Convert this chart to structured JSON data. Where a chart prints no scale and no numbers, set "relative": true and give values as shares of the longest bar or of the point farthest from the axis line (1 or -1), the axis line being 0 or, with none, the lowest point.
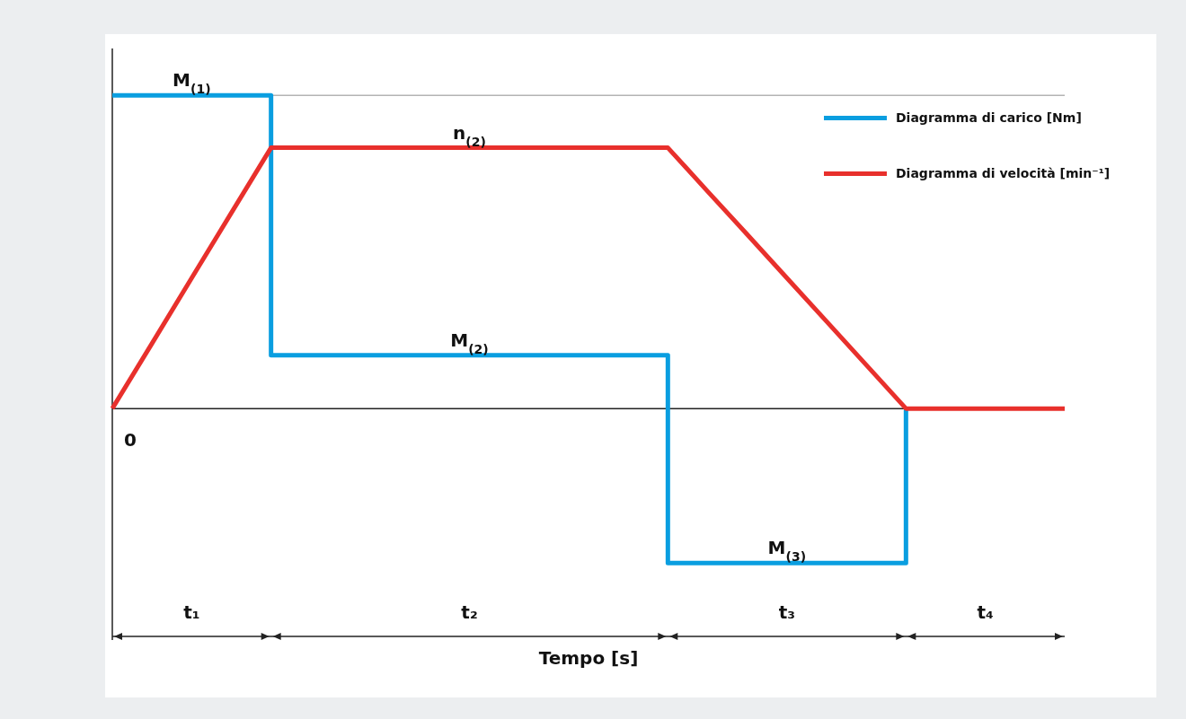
{
  "chart_data": {
    "type": "line",
    "relative": true,
    "xlabel": "Tempo [s]",
    "tick_labels": "x",
    "grid": false,
    "legend": "top right",
    "marker": "none",
    "line_style": "solid",
    "categories": [
      null,
      null,
      "t₁",
      null,
      null,
      null,
      null,
      null,
      null,
      "t₂",
      null,
      null,
      null,
      null,
      null,
      null,
      null,
      "t₃",
      null,
      null,
      null,
      null,
      "t₄",
      null,
      null
    ],
    "series": [
      {
        "name": "Diagramma di carico [Nm]",
        "type": "step",
        "color": "#0a9ee0",
        "values": [
          1,
          1,
          1,
          1,
          0.17,
          0.17,
          0.17,
          0.17,
          0.17,
          0.17,
          0.17,
          0.17,
          0.17,
          0.17,
          -0.493,
          -0.493,
          -0.493,
          -0.493,
          -0.493,
          -0.493,
          0,
          null,
          null,
          null,
          null
        ]
      },
      {
        "name": "Diagramma di velocità [min⁻¹]",
        "color": "#e8302c",
        "values": [
          0,
          0.208,
          0.417,
          0.625,
          0.833,
          0.833,
          0.833,
          0.833,
          0.833,
          0.833,
          0.833,
          0.833,
          0.833,
          0.833,
          0.833,
          0.694,
          0.556,
          0.417,
          0.278,
          0.139,
          0,
          0,
          0,
          0,
          0
        ]
      }
    ],
    "ref_lines": [
      {
        "axis": "y",
        "value": 1,
        "color": "#b4b4b4",
        "line_style": "solid"
      }
    ],
    "annotations": [
      {
        "text": "M$_{(1)}$",
        "x": "t₁",
        "y": 1
      },
      {
        "text": "n$_{(2)}$",
        "x": "t₂",
        "y": 0.833
      },
      {
        "text": "M$_{(2)}$",
        "x": "t₂",
        "y": 0.17
      },
      {
        "text": "M$_{(3)}$",
        "x": "t₃",
        "y": -0.493
      },
      "0"
    ]
  }
}
